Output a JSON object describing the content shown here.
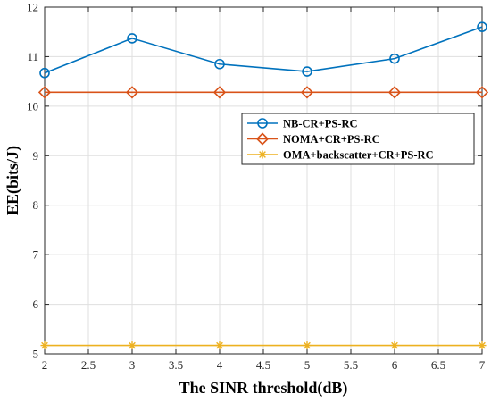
{
  "chart_data": {
    "type": "line",
    "xlabel": "The SINR threshold(dB)",
    "ylabel": "EE(bits/J)",
    "xlim": [
      2,
      7
    ],
    "ylim": [
      5,
      12
    ],
    "xticks": [
      "2",
      "2.5",
      "3",
      "3.5",
      "4",
      "4.5",
      "5",
      "5.5",
      "6",
      "6.5",
      "7"
    ],
    "yticks": [
      "5",
      "6",
      "7",
      "8",
      "9",
      "10",
      "11",
      "12"
    ],
    "grid": true,
    "legend_position": "center-right",
    "x": [
      2,
      3,
      4,
      5,
      6,
      7
    ],
    "series": [
      {
        "name": "NB-CR+PS-RC",
        "values": [
          10.67,
          11.37,
          10.85,
          10.7,
          10.96,
          11.6
        ],
        "color": "#0072BD",
        "marker": "circle"
      },
      {
        "name": "NOMA+CR+PS-RC",
        "values": [
          10.28,
          10.28,
          10.28,
          10.28,
          10.28,
          10.28
        ],
        "color": "#D95319",
        "marker": "diamond"
      },
      {
        "name": "OMA+backscatter+CR+PS-RC",
        "values": [
          5.17,
          5.17,
          5.17,
          5.17,
          5.17,
          5.17
        ],
        "color": "#EDB120",
        "marker": "asterisk"
      }
    ]
  }
}
